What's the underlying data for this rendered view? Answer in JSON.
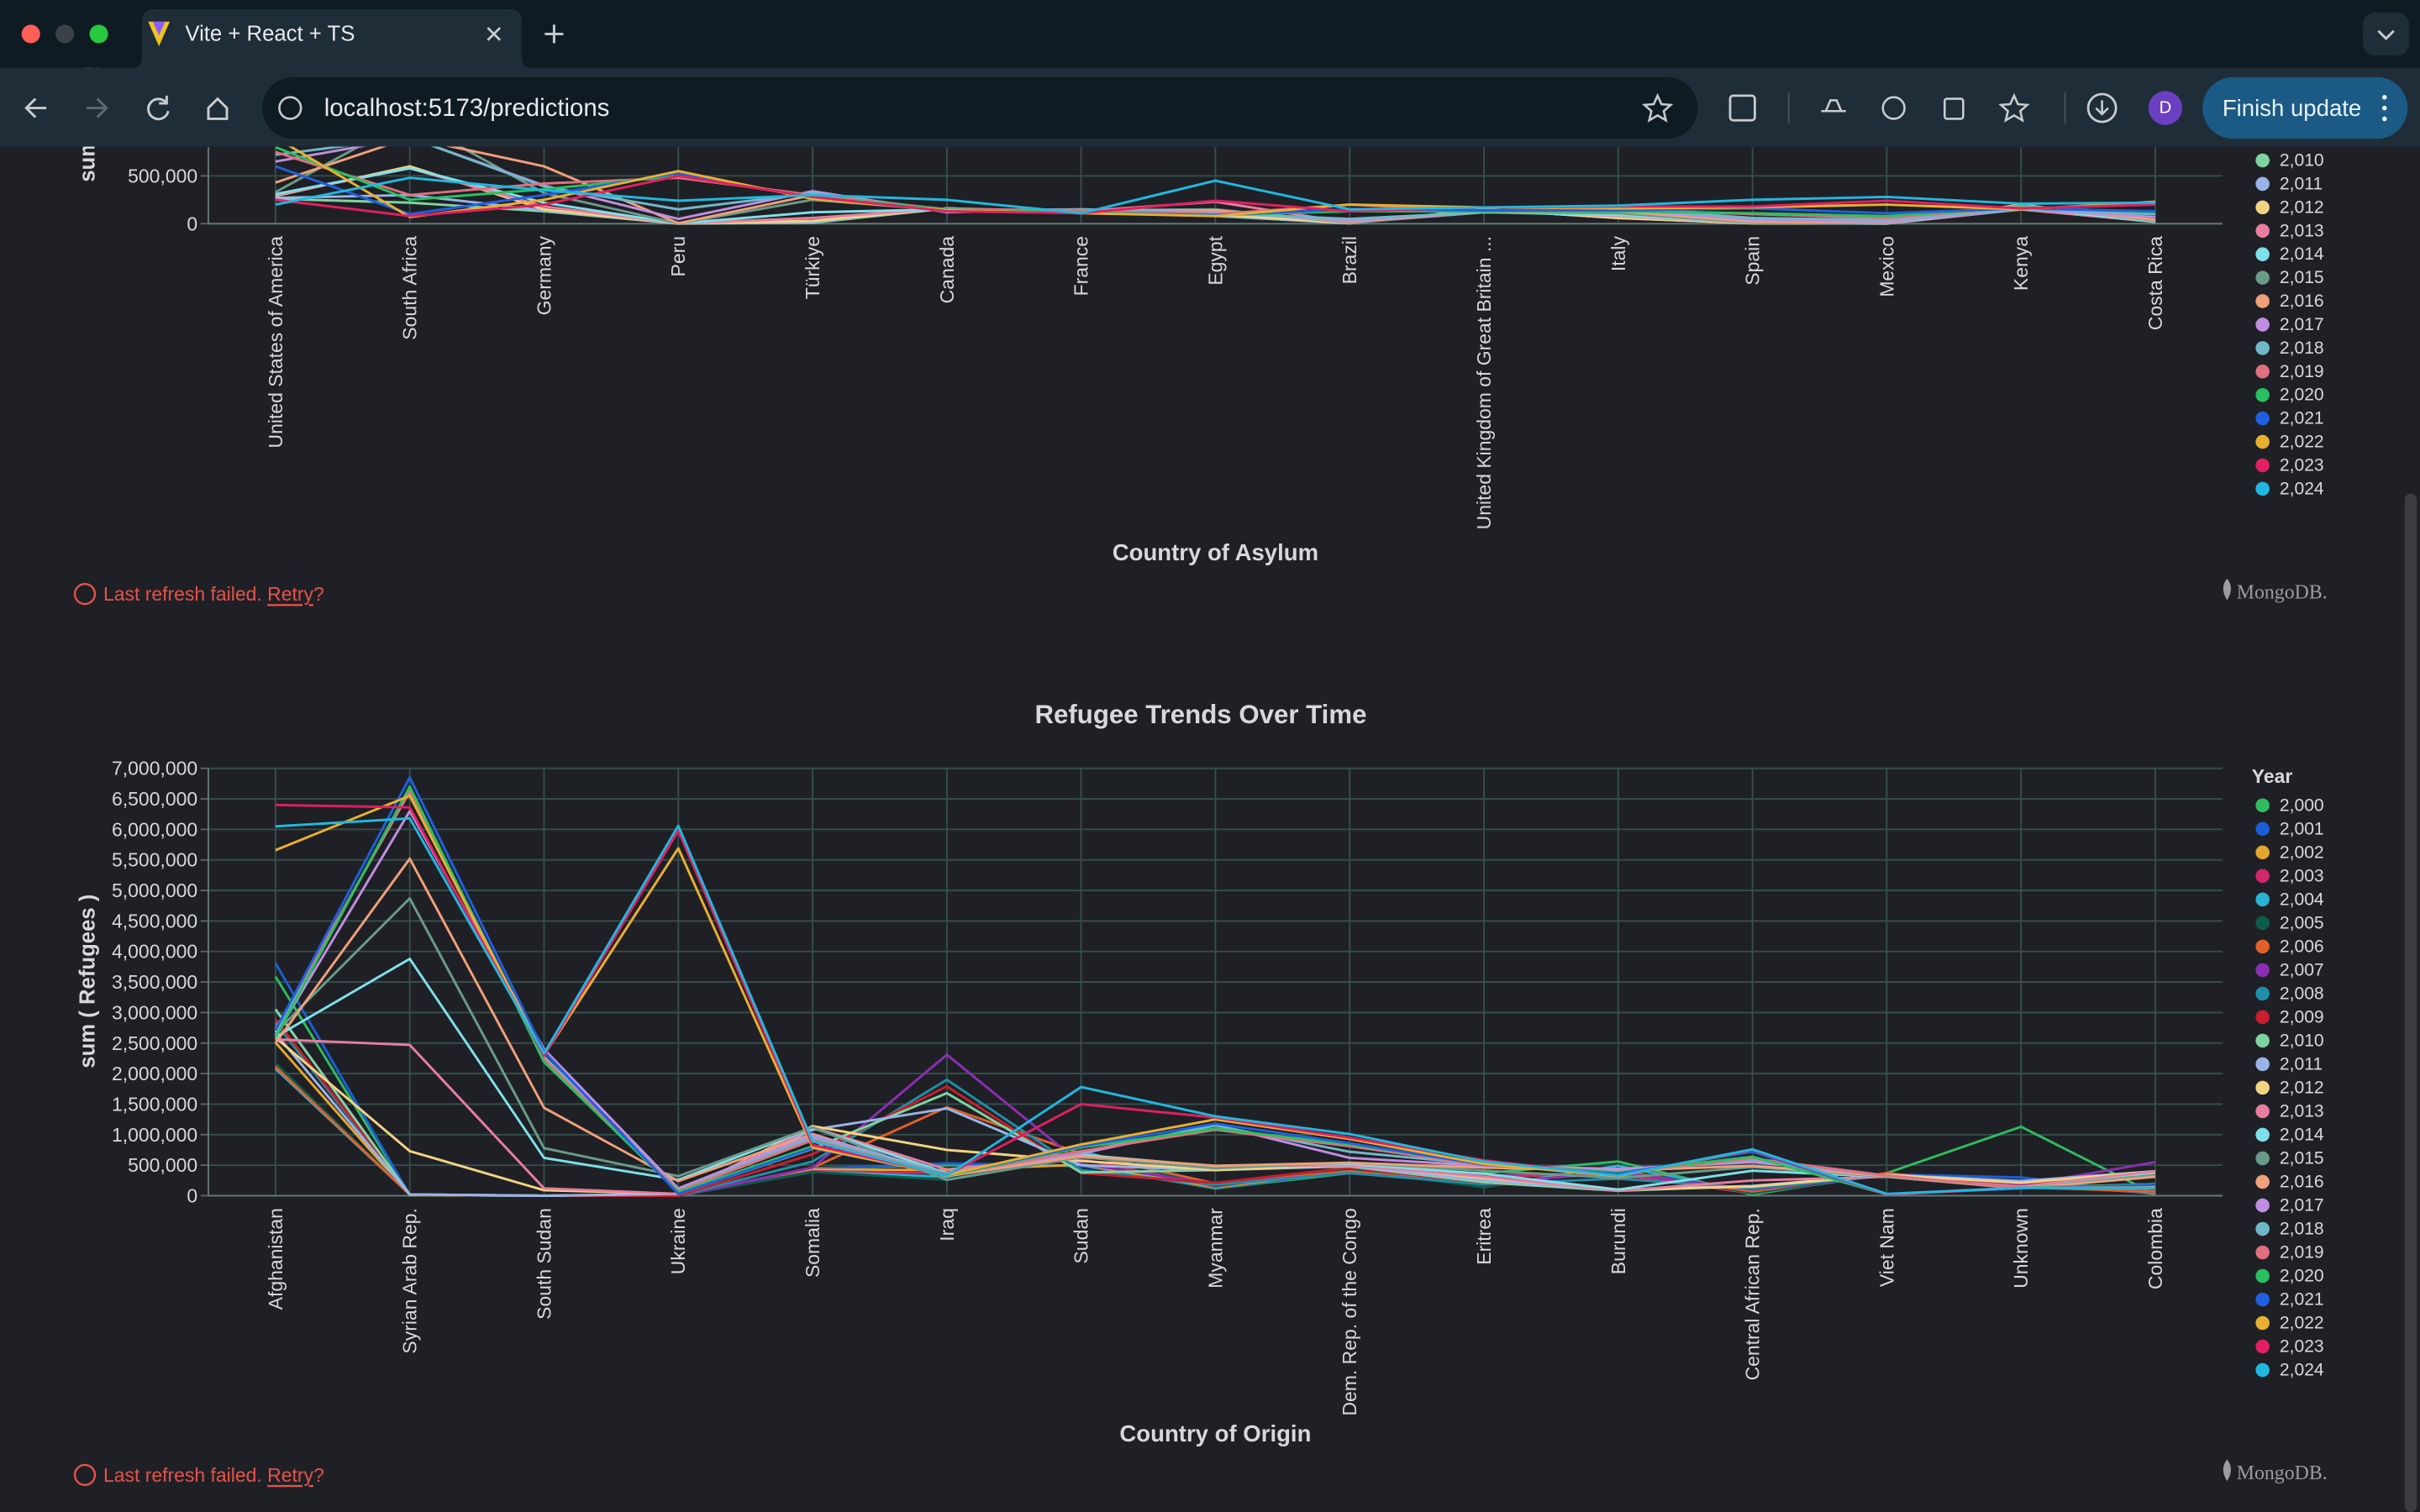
{
  "browser": {
    "tab_title": "Vite + React + TS",
    "url": "localhost:5173/predictions",
    "update_button": "Finish update",
    "profile": "D"
  },
  "panels": [
    {
      "status": "Last refresh failed.",
      "retry": "Retry",
      "mark": "?",
      "brand": "MongoDB."
    },
    {
      "status": "Last refresh failed.",
      "retry": "Retry",
      "mark": "?",
      "brand": "MongoDB."
    }
  ],
  "chart_data": [
    {
      "type": "line",
      "x_label": "Country of Asylum",
      "y_label": "sum ( Refugees )",
      "categories": [
        "United States of America",
        "South Africa",
        "Germany",
        "Peru",
        "Türkiye",
        "Canada",
        "France",
        "Egypt",
        "Brazil",
        "United Kingdom of Great Britain ...",
        "Italy",
        "Spain",
        "Mexico",
        "Kenya",
        "Costa Rica"
      ],
      "ylim": [
        0,
        800000
      ],
      "yticks": [
        0,
        {
          "value": 500000,
          "label": "500,000"
        }
      ],
      "grid": true,
      "series": [
        {
          "name": "2,010",
          "color": "#7ed4a0",
          "values": [
            260000,
            220000,
            130000,
            1000,
            10000,
            160000,
            120000,
            80000,
            5000,
            150000,
            60000,
            5000,
            1000,
            150000,
            20000
          ]
        },
        {
          "name": "2,011",
          "color": "#9ab3e8",
          "values": [
            270000,
            300000,
            140000,
            1000,
            20000,
            160000,
            120000,
            90000,
            5000,
            150000,
            60000,
            5000,
            1000,
            180000,
            20000
          ]
        },
        {
          "name": "2,012",
          "color": "#f2d384",
          "values": [
            290000,
            600000,
            150000,
            1000,
            30000,
            160000,
            120000,
            100000,
            5000,
            150000,
            60000,
            5000,
            1000,
            200000,
            20000
          ]
        },
        {
          "name": "2,013",
          "color": "#e87da0",
          "values": [
            300000,
            580000,
            180000,
            2000,
            60000,
            160000,
            130000,
            230000,
            10000,
            140000,
            80000,
            10000,
            2000,
            150000,
            20000
          ]
        },
        {
          "name": "2,014",
          "color": "#7ee0ea",
          "values": [
            310000,
            580000,
            220000,
            2000,
            120000,
            150000,
            130000,
            140000,
            10000,
            120000,
            90000,
            10000,
            2000,
            170000,
            20000
          ]
        },
        {
          "name": "2,015",
          "color": "#6a9a8a",
          "values": [
            330000,
            1100000,
            320000,
            2000,
            250000,
            140000,
            140000,
            150000,
            10000,
            120000,
            110000,
            10000,
            5000,
            190000,
            30000
          ]
        },
        {
          "name": "2,016",
          "color": "#f0a07a",
          "values": [
            430000,
            900000,
            600000,
            5000,
            300000,
            130000,
            140000,
            140000,
            20000,
            120000,
            130000,
            20000,
            10000,
            180000,
            40000
          ]
        },
        {
          "name": "2,017",
          "color": "#c08ee0",
          "values": [
            650000,
            900000,
            400000,
            50000,
            340000,
            120000,
            150000,
            120000,
            30000,
            120000,
            150000,
            40000,
            20000,
            150000,
            70000
          ]
        },
        {
          "name": "2,018",
          "color": "#70b8c8",
          "values": [
            720000,
            900000,
            390000,
            150000,
            320000,
            140000,
            150000,
            110000,
            50000,
            120000,
            160000,
            60000,
            40000,
            150000,
            100000
          ]
        },
        {
          "name": "2,019",
          "color": "#e07080",
          "values": [
            750000,
            300000,
            420000,
            480000,
            300000,
            150000,
            140000,
            100000,
            200000,
            130000,
            150000,
            100000,
            60000,
            170000,
            120000
          ]
        },
        {
          "name": "2,020",
          "color": "#28c060",
          "values": [
            800000,
            250000,
            360000,
            500000,
            280000,
            150000,
            120000,
            90000,
            130000,
            130000,
            130000,
            110000,
            80000,
            170000,
            120000
          ]
        },
        {
          "name": "2,021",
          "color": "#2060e0",
          "values": [
            600000,
            100000,
            300000,
            530000,
            270000,
            140000,
            110000,
            90000,
            150000,
            140000,
            140000,
            160000,
            110000,
            160000,
            130000
          ]
        },
        {
          "name": "2,022",
          "color": "#e8b030",
          "values": [
            900000,
            70000,
            250000,
            550000,
            260000,
            140000,
            110000,
            80000,
            200000,
            170000,
            160000,
            170000,
            200000,
            150000,
            230000
          ]
        },
        {
          "name": "2,023",
          "color": "#e02060",
          "values": [
            250000,
            80000,
            200000,
            500000,
            280000,
            130000,
            110000,
            240000,
            130000,
            170000,
            180000,
            180000,
            240000,
            160000,
            200000
          ]
        },
        {
          "name": "2,024",
          "color": "#20b8e0",
          "values": [
            200000,
            480000,
            350000,
            240000,
            300000,
            250000,
            110000,
            450000,
            150000,
            170000,
            190000,
            250000,
            280000,
            210000,
            220000
          ]
        }
      ]
    },
    {
      "type": "line",
      "title": "Refugee Trends Over Time",
      "x_label": "Country of Origin",
      "y_label": "sum ( Refugees )",
      "legend_title": "Year",
      "categories": [
        "Afghanistan",
        "Syrian Arab Rep.",
        "South Sudan",
        "Ukraine",
        "Somalia",
        "Iraq",
        "Sudan",
        "Myanmar",
        "Dem. Rep. of the Congo",
        "Eritrea",
        "Burundi",
        "Central African Rep.",
        "Viet Nam",
        "Unknown",
        "Colombia"
      ],
      "ylim": [
        0,
        7000000
      ],
      "yticks": [
        0,
        {
          "value": 500000,
          "label": "500,000"
        },
        {
          "value": 1000000,
          "label": "1,000,000"
        },
        {
          "value": 1500000,
          "label": "1,500,000"
        },
        {
          "value": 2000000,
          "label": "2,000,000"
        },
        {
          "value": 2500000,
          "label": "2,500,000"
        },
        {
          "value": 3000000,
          "label": "3,000,000"
        },
        {
          "value": 3500000,
          "label": "3,500,000"
        },
        {
          "value": 4000000,
          "label": "4,000,000"
        },
        {
          "value": 4500000,
          "label": "4,500,000"
        },
        {
          "value": 5000000,
          "label": "5,000,000"
        },
        {
          "value": 5500000,
          "label": "5,500,000"
        },
        {
          "value": 6000000,
          "label": "6,000,000"
        },
        {
          "value": 6500000,
          "label": "6,500,000"
        },
        {
          "value": 7000000,
          "label": "7,000,000"
        }
      ],
      "grid": true,
      "series": [
        {
          "name": "2,000",
          "color": "#2fbb5f",
          "values": [
            3590000,
            10000,
            0,
            0,
            450000,
            500000,
            490000,
            120000,
            370000,
            370000,
            560000,
            20000,
            370000,
            1130000,
            20000
          ]
        },
        {
          "name": "2,001",
          "color": "#1a5fd6",
          "values": [
            3810000,
            10000,
            0,
            0,
            440000,
            530000,
            490000,
            130000,
            390000,
            330000,
            380000,
            40000,
            350000,
            300000,
            30000
          ]
        },
        {
          "name": "2,002",
          "color": "#e3a72f",
          "values": [
            2510000,
            10000,
            0,
            0,
            430000,
            420000,
            510000,
            140000,
            410000,
            320000,
            350000,
            40000,
            350000,
            200000,
            40000
          ]
        },
        {
          "name": "2,003",
          "color": "#d4266b",
          "values": [
            2140000,
            20000,
            0,
            0,
            400000,
            370000,
            600000,
            150000,
            450000,
            320000,
            350000,
            40000,
            350000,
            160000,
            50000
          ]
        },
        {
          "name": "2,004",
          "color": "#2ab2d6",
          "values": [
            2080000,
            20000,
            0,
            0,
            390000,
            310000,
            730000,
            160000,
            460000,
            140000,
            490000,
            40000,
            350000,
            150000,
            60000
          ]
        },
        {
          "name": "2,005",
          "color": "#0d5c4b",
          "values": [
            2170000,
            20000,
            0,
            0,
            390000,
            260000,
            690000,
            160000,
            430000,
            140000,
            440000,
            40000,
            360000,
            130000,
            70000
          ]
        },
        {
          "name": "2,006",
          "color": "#e0612a",
          "values": [
            2110000,
            20000,
            0,
            0,
            460000,
            1450000,
            690000,
            200000,
            400000,
            190000,
            400000,
            70000,
            370000,
            140000,
            70000
          ]
        },
        {
          "name": "2,007",
          "color": "#8a2fb3",
          "values": [
            3060000,
            20000,
            0,
            0,
            460000,
            2310000,
            520000,
            190000,
            370000,
            200000,
            380000,
            100000,
            330000,
            170000,
            550000
          ]
        },
        {
          "name": "2,008",
          "color": "#1e8fa8",
          "values": [
            2830000,
            20000,
            0,
            0,
            560000,
            1900000,
            420000,
            180000,
            370000,
            190000,
            280000,
            120000,
            330000,
            200000,
            370000
          ]
        },
        {
          "name": "2,009",
          "color": "#c81e2e",
          "values": [
            2890000,
            20000,
            0,
            0,
            680000,
            1790000,
            370000,
            210000,
            460000,
            210000,
            100000,
            160000,
            340000,
            200000,
            390000
          ]
        },
        {
          "name": "2,010",
          "color": "#7ed4a0",
          "values": [
            3050000,
            20000,
            0,
            30000,
            770000,
            1680000,
            380000,
            420000,
            480000,
            220000,
            80000,
            160000,
            340000,
            230000,
            400000
          ]
        },
        {
          "name": "2,011",
          "color": "#9ab3e8",
          "values": [
            2660000,
            20000,
            0,
            30000,
            1080000,
            1430000,
            500000,
            420000,
            490000,
            250000,
            100000,
            160000,
            340000,
            240000,
            400000
          ]
        },
        {
          "name": "2,012",
          "color": "#f2d384",
          "values": [
            2590000,
            730000,
            90000,
            30000,
            1140000,
            750000,
            570000,
            420000,
            510000,
            290000,
            100000,
            150000,
            340000,
            210000,
            400000
          ]
        },
        {
          "name": "2,013",
          "color": "#e87da0",
          "values": [
            2560000,
            2470000,
            120000,
            30000,
            1120000,
            430000,
            650000,
            480000,
            500000,
            310000,
            80000,
            250000,
            310000,
            150000,
            400000
          ]
        },
        {
          "name": "2,014",
          "color": "#7ee0ea",
          "values": [
            2600000,
            3880000,
            620000,
            260000,
            1110000,
            370000,
            670000,
            480000,
            520000,
            360000,
            100000,
            410000,
            310000,
            120000,
            360000
          ]
        },
        {
          "name": "2,015",
          "color": "#6a9a8a",
          "values": [
            2670000,
            4870000,
            780000,
            320000,
            1120000,
            260000,
            630000,
            450000,
            540000,
            410000,
            290000,
            470000,
            310000,
            120000,
            340000
          ]
        },
        {
          "name": "2,016",
          "color": "#f0a07a",
          "values": [
            2500000,
            5520000,
            1440000,
            240000,
            1010000,
            320000,
            650000,
            490000,
            540000,
            460000,
            410000,
            490000,
            320000,
            120000,
            310000
          ]
        },
        {
          "name": "2,017",
          "color": "#c08ee0",
          "values": [
            2620000,
            6300000,
            2400000,
            120000,
            990000,
            360000,
            690000,
            1160000,
            620000,
            490000,
            440000,
            550000,
            330000,
            130000,
            140000
          ]
        },
        {
          "name": "2,018",
          "color": "#70b8c8",
          "values": [
            2680000,
            6650000,
            2280000,
            90000,
            950000,
            370000,
            720000,
            1150000,
            720000,
            510000,
            390000,
            590000,
            330000,
            130000,
            140000
          ]
        },
        {
          "name": "2,019",
          "color": "#e07080",
          "values": [
            2730000,
            6620000,
            2240000,
            80000,
            910000,
            340000,
            730000,
            1080000,
            810000,
            500000,
            380000,
            610000,
            330000,
            130000,
            190000
          ]
        },
        {
          "name": "2,020",
          "color": "#28c060",
          "values": [
            2590000,
            6700000,
            2190000,
            60000,
            810000,
            330000,
            790000,
            1100000,
            840000,
            520000,
            380000,
            640000,
            20000,
            130000,
            190000
          ]
        },
        {
          "name": "2,021",
          "color": "#2060e0",
          "values": [
            2710000,
            6850000,
            2360000,
            30000,
            780000,
            340000,
            810000,
            1180000,
            860000,
            510000,
            360000,
            720000,
            20000,
            120000,
            180000
          ]
        },
        {
          "name": "2,022",
          "color": "#e8b030",
          "values": [
            5660000,
            6550000,
            2300000,
            5690000,
            790000,
            340000,
            840000,
            1250000,
            930000,
            520000,
            320000,
            750000,
            20000,
            130000,
            130000
          ]
        },
        {
          "name": "2,023",
          "color": "#e02060",
          "values": [
            6400000,
            6360000,
            2290000,
            5980000,
            830000,
            340000,
            1500000,
            1280000,
            950000,
            580000,
            330000,
            750000,
            20000,
            130000,
            120000
          ]
        },
        {
          "name": "2,024",
          "color": "#20b8e0",
          "values": [
            6050000,
            6180000,
            2330000,
            6060000,
            890000,
            330000,
            1780000,
            1300000,
            1010000,
            560000,
            330000,
            760000,
            30000,
            130000,
            120000
          ]
        }
      ]
    }
  ]
}
